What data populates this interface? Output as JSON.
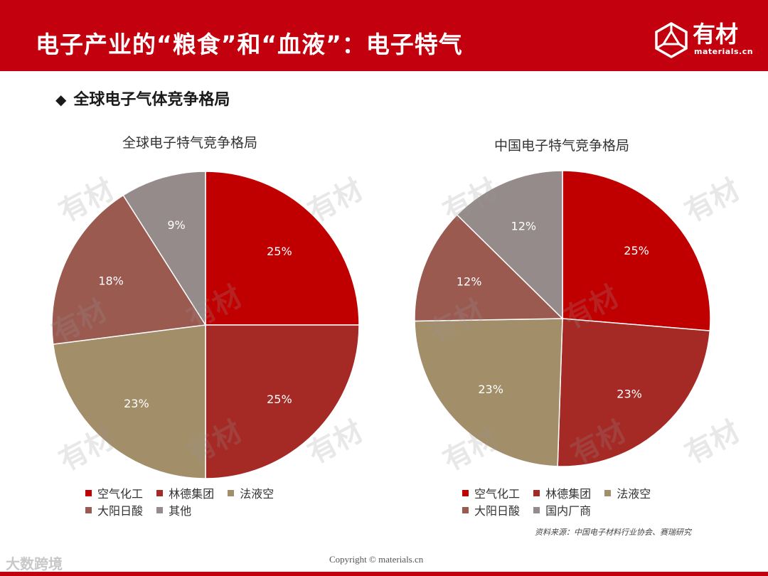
{
  "header": {
    "title": "电子产业的“粮食”和“血液”：电子特气",
    "logo_text": "有材",
    "logo_sub": "materials.cn"
  },
  "section": {
    "bullet": "◆",
    "heading": "全球电子气体竞争格局"
  },
  "colors": {
    "brand_red": "#c3000d",
    "series": [
      "#c00000",
      "#a52a25",
      "#a38e6a",
      "#9a5a50",
      "#968b8b"
    ]
  },
  "chart_data": [
    {
      "type": "pie",
      "title": "全球电子特气竞争格局",
      "labels": [
        "空气化工",
        "林德集团",
        "法液空",
        "大阳日酸",
        "其他"
      ],
      "values": [
        25,
        25,
        23,
        18,
        9
      ],
      "value_labels": [
        "25%",
        "25%",
        "23%",
        "18%",
        "9%"
      ],
      "legend_position": "bottom"
    },
    {
      "type": "pie",
      "title": "中国电子特气竞争格局",
      "labels": [
        "空气化工",
        "林德集团",
        "法液空",
        "大阳日酸",
        "国内厂商"
      ],
      "values": [
        25,
        23,
        23,
        12,
        12
      ],
      "value_labels": [
        "25%",
        "23%",
        "23%",
        "12%",
        "12%"
      ],
      "legend_position": "bottom"
    }
  ],
  "footer": {
    "source": "资料来源：中国电子材料行业协会、赛瑞研究",
    "copyright": "Copyright © materials.cn",
    "corner_mark": "大数跨境"
  }
}
